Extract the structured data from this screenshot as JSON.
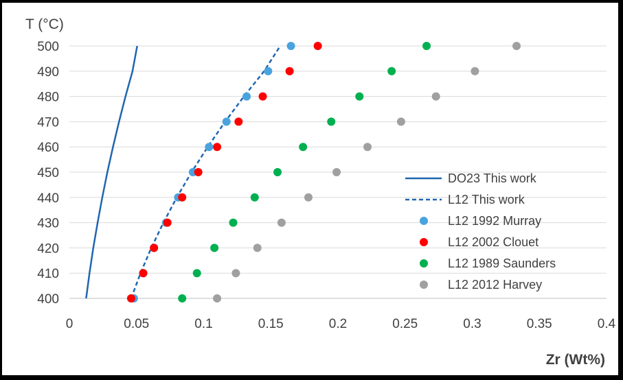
{
  "chart_data": {
    "type": "scatter",
    "title": "",
    "xlabel": "Zr (Wt%)",
    "ylabel": "T (°C)",
    "xlim": [
      0,
      0.4
    ],
    "ylim": [
      400,
      500
    ],
    "xticks": [
      {
        "value": 0,
        "label": "0"
      },
      {
        "value": 0.05,
        "label": "0.05"
      },
      {
        "value": 0.1,
        "label": "0.1"
      },
      {
        "value": 0.15,
        "label": "0.15"
      },
      {
        "value": 0.2,
        "label": "0.2"
      },
      {
        "value": 0.25,
        "label": "0.25"
      },
      {
        "value": 0.3,
        "label": "0.3"
      },
      {
        "value": 0.35,
        "label": "0.35"
      },
      {
        "value": 0.4,
        "label": "0.4"
      }
    ],
    "yticks": [
      {
        "value": 400,
        "label": "400"
      },
      {
        "value": 410,
        "label": "410"
      },
      {
        "value": 420,
        "label": "420"
      },
      {
        "value": 430,
        "label": "430"
      },
      {
        "value": 440,
        "label": "440"
      },
      {
        "value": 450,
        "label": "450"
      },
      {
        "value": 460,
        "label": "460"
      },
      {
        "value": 470,
        "label": "470"
      },
      {
        "value": 480,
        "label": "480"
      },
      {
        "value": 490,
        "label": "490"
      },
      {
        "value": 500,
        "label": "500"
      }
    ],
    "grid": "horizontal",
    "legend_position": "right",
    "series": [
      {
        "name": "DO23 This work",
        "kind": "line",
        "style": "solid",
        "color": "#1f66b0",
        "x": [
          0.0125,
          0.015,
          0.0178,
          0.021,
          0.0245,
          0.0283,
          0.0325,
          0.037,
          0.0418,
          0.047,
          0.0505
        ],
        "y": [
          400,
          410,
          420,
          430,
          440,
          450,
          460,
          470,
          480,
          490,
          500
        ]
      },
      {
        "name": "L12 This work",
        "kind": "line",
        "style": "dashed",
        "color": "#1f66b0",
        "x": [
          0.046,
          0.053,
          0.061,
          0.07,
          0.08,
          0.091,
          0.103,
          0.116,
          0.13,
          0.145,
          0.157
        ],
        "y": [
          400,
          410,
          420,
          430,
          440,
          450,
          460,
          470,
          480,
          490,
          500
        ]
      },
      {
        "name": "L12 1992 Murray",
        "kind": "scatter",
        "color": "#4aa3df",
        "x": [
          0.048,
          0.055,
          0.063,
          0.072,
          0.081,
          0.092,
          0.104,
          0.117,
          0.132,
          0.148,
          0.165
        ],
        "y": [
          400,
          410,
          420,
          430,
          440,
          450,
          460,
          470,
          480,
          490,
          500
        ]
      },
      {
        "name": "L12 2002 Clouet",
        "kind": "scatter",
        "color": "#ff0000",
        "x": [
          0.046,
          0.055,
          0.063,
          0.073,
          0.084,
          0.096,
          0.11,
          0.126,
          0.144,
          0.164,
          0.185
        ],
        "y": [
          400,
          410,
          420,
          430,
          440,
          450,
          460,
          470,
          480,
          490,
          500
        ]
      },
      {
        "name": "L12 1989 Saunders",
        "kind": "scatter",
        "color": "#00b050",
        "x": [
          0.084,
          0.095,
          0.108,
          0.122,
          0.138,
          0.155,
          0.174,
          0.195,
          0.216,
          0.24,
          0.266
        ],
        "y": [
          400,
          410,
          420,
          430,
          440,
          450,
          460,
          470,
          480,
          490,
          500
        ]
      },
      {
        "name": "L12 2012 Harvey",
        "kind": "scatter",
        "color": "#a0a0a0",
        "x": [
          0.11,
          0.124,
          0.14,
          0.158,
          0.178,
          0.199,
          0.222,
          0.247,
          0.273,
          0.302,
          0.333
        ],
        "y": [
          400,
          410,
          420,
          430,
          440,
          450,
          460,
          470,
          480,
          490,
          500
        ]
      }
    ]
  }
}
